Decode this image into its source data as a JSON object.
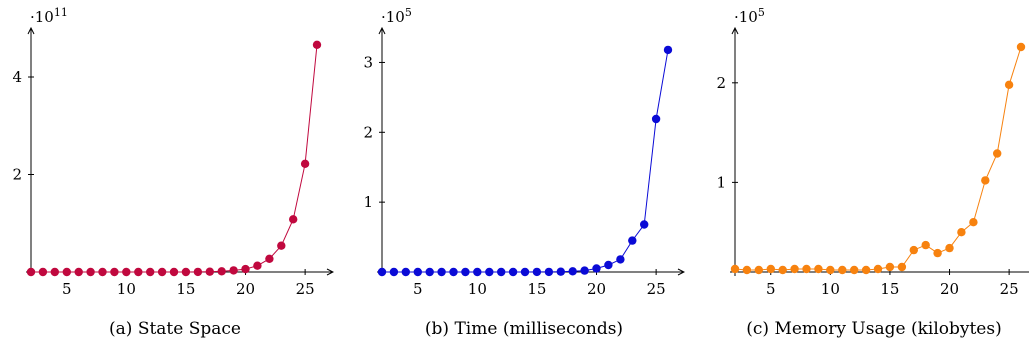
{
  "chart_data": [
    {
      "type": "line",
      "caption": "(a) State Space",
      "multiplier": "·10",
      "exponent": "11",
      "color": "#c0083e",
      "x": [
        2,
        3,
        4,
        5,
        6,
        7,
        8,
        9,
        10,
        11,
        12,
        13,
        14,
        15,
        16,
        17,
        18,
        19,
        20,
        21,
        22,
        23,
        24,
        25,
        26
      ],
      "values": [
        0.0,
        0.0,
        0.0,
        0.0,
        0.0,
        0.0,
        0.0,
        0.0,
        0.0,
        0.0,
        0.0,
        0.0,
        0.0,
        0.001,
        0.003,
        0.006,
        0.014,
        0.032,
        0.06,
        0.13,
        0.27,
        0.54,
        1.08,
        2.22,
        4.66
      ],
      "xlim": [
        2,
        26.5
      ],
      "ylim": [
        0,
        4.8
      ],
      "xticks": [
        5,
        10,
        15,
        20,
        25
      ],
      "yticks": [
        2,
        4
      ],
      "xtick_labels": [
        "5",
        "10",
        "15",
        "20",
        "25"
      ],
      "ytick_labels": [
        "2",
        "4"
      ]
    },
    {
      "type": "line",
      "caption": "(b) Time (milliseconds)",
      "multiplier": "·10",
      "exponent": "5",
      "color": "#0a0ad6",
      "x": [
        2,
        3,
        4,
        5,
        6,
        7,
        8,
        9,
        10,
        11,
        12,
        13,
        14,
        15,
        16,
        17,
        18,
        19,
        20,
        21,
        22,
        23,
        24,
        25,
        26
      ],
      "values": [
        0,
        0,
        0,
        0,
        0,
        0,
        0,
        0,
        0,
        0,
        0,
        0,
        0,
        0.001,
        0.002,
        0.005,
        0.01,
        0.02,
        0.05,
        0.1,
        0.18,
        0.45,
        0.68,
        2.19,
        3.18
      ],
      "xlim": [
        2,
        26.5
      ],
      "ylim": [
        0,
        3.35
      ],
      "xticks": [
        5,
        10,
        15,
        20,
        25
      ],
      "yticks": [
        1,
        2,
        3
      ],
      "xtick_labels": [
        "5",
        "10",
        "15",
        "20",
        "25"
      ],
      "ytick_labels": [
        "1",
        "2",
        "3"
      ]
    },
    {
      "type": "line",
      "caption": "(c) Memory Usage (kilobytes)",
      "multiplier": "·10",
      "exponent": "5",
      "color": "#f7820f",
      "x": [
        2,
        3,
        4,
        5,
        6,
        7,
        8,
        9,
        10,
        11,
        12,
        13,
        14,
        15,
        16,
        17,
        18,
        19,
        20,
        21,
        22,
        23,
        24,
        25,
        26
      ],
      "values": [
        0.13,
        0.12,
        0.12,
        0.13,
        0.12,
        0.13,
        0.13,
        0.13,
        0.12,
        0.12,
        0.12,
        0.12,
        0.13,
        0.15,
        0.15,
        0.32,
        0.37,
        0.29,
        0.34,
        0.5,
        0.6,
        1.02,
        1.29,
        1.98,
        2.36
      ],
      "xlim": [
        2,
        26.5
      ],
      "ylim": [
        0.1,
        2.45
      ],
      "xticks": [
        5,
        10,
        15,
        20,
        25
      ],
      "yticks": [
        1,
        2
      ],
      "xtick_labels": [
        "5",
        "10",
        "15",
        "20",
        "25"
      ],
      "ytick_labels": [
        "1",
        "2"
      ]
    }
  ]
}
